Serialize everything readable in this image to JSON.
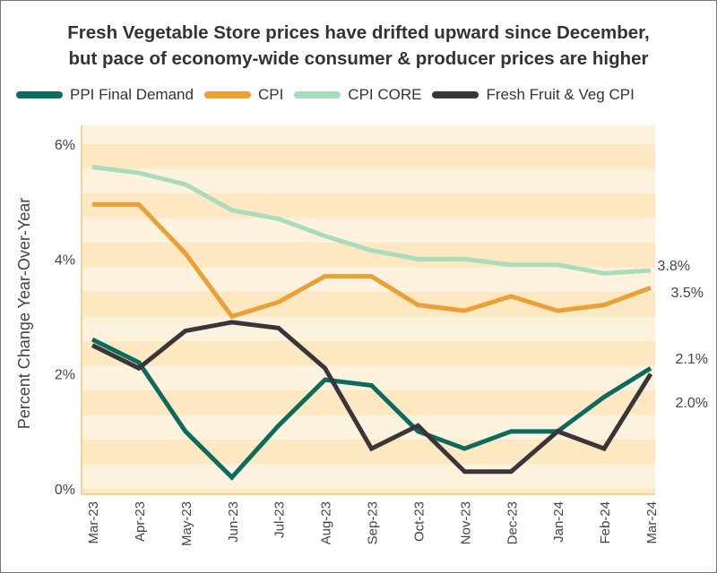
{
  "chart_data": {
    "type": "line",
    "title": "Fresh Vegetable Store prices have drifted upward since December, but pace of economy-wide consumer & producer prices are higher",
    "title_lines": [
      "Fresh Vegetable Store prices have drifted upward since December,",
      "but pace of economy-wide consumer & producer prices are higher"
    ],
    "xlabel": "",
    "ylabel": "Percent Change Year-Over-Year",
    "ylim": [
      0,
      6
    ],
    "y_ticks": [
      {
        "value": 0,
        "label": "0%"
      },
      {
        "value": 2,
        "label": "2%"
      },
      {
        "value": 4,
        "label": "4%"
      },
      {
        "value": 6,
        "label": "6%"
      }
    ],
    "categories": [
      "Mar-23",
      "Apr-23",
      "May-23",
      "Jun-23",
      "Jul-23",
      "Aug-23",
      "Sep-23",
      "Oct-23",
      "Nov-23",
      "Dec-23",
      "Jan-24",
      "Feb-24",
      "Mar-24"
    ],
    "grid": false,
    "background_bands": [
      "#fde8c2",
      "#fdf2de"
    ],
    "legend_position": "top",
    "series": [
      {
        "name": "PPI Final Demand",
        "color": "#0b6b5e",
        "values": [
          2.6,
          2.2,
          1.0,
          0.2,
          1.1,
          1.9,
          1.8,
          1.0,
          0.7,
          1.0,
          1.0,
          1.6,
          2.1
        ],
        "end_label": "2.1%"
      },
      {
        "name": "CPI",
        "color": "#e9a136",
        "values": [
          4.95,
          4.95,
          4.1,
          3.0,
          3.25,
          3.7,
          3.7,
          3.2,
          3.1,
          3.35,
          3.1,
          3.2,
          3.5
        ],
        "end_label": "3.5%"
      },
      {
        "name": "CPI CORE",
        "color": "#a9dcbd",
        "values": [
          5.6,
          5.5,
          5.3,
          4.85,
          4.7,
          4.4,
          4.15,
          4.0,
          4.0,
          3.9,
          3.9,
          3.75,
          3.8
        ],
        "end_label": "3.8%"
      },
      {
        "name": "Fresh Fruit & Veg CPI",
        "color": "#3a3538",
        "values": [
          2.5,
          2.1,
          2.75,
          2.9,
          2.8,
          2.1,
          0.7,
          1.1,
          0.3,
          0.3,
          1.0,
          0.7,
          2.0
        ],
        "end_label": "2.0%"
      }
    ]
  }
}
